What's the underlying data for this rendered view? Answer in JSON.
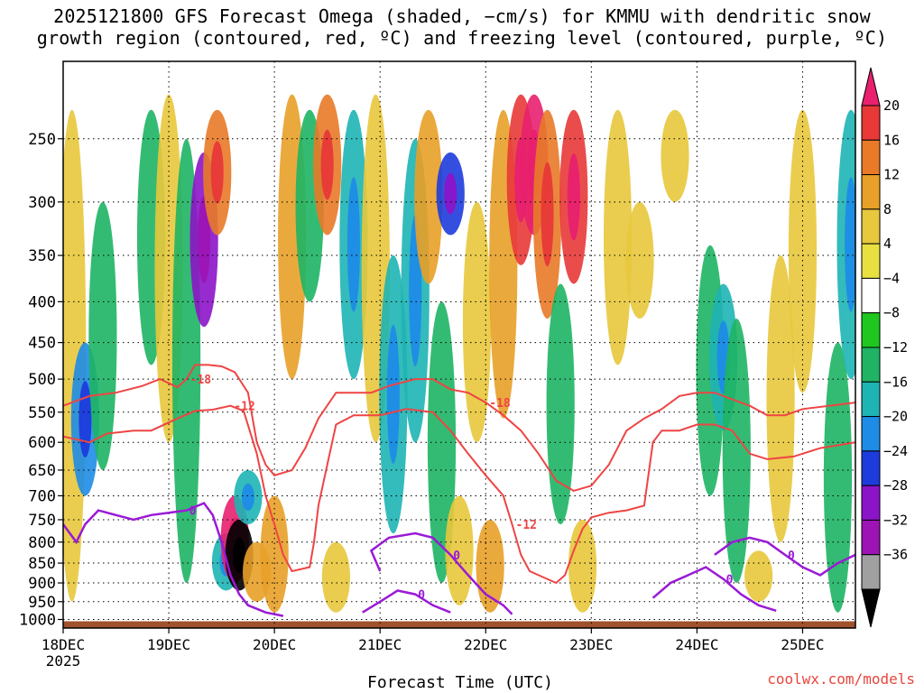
{
  "title_line1": "2025121800 GFS Forecast Omega (shaded, −cm/s) for KMMU with dendritic snow",
  "title_line2": "growth region (contoured, red, ºC) and freezing level (contoured, purple, ºC)",
  "credit": "coolwx.com/models",
  "chart_data": {
    "type": "heatmap",
    "title": "2025121800 GFS Forecast Omega (shaded, −cm/s) for KMMU with dendritic snow growth region (contoured, red, ºC) and freezing level (contoured, purple, ºC)",
    "xlabel": "Forecast Time (UTC)",
    "ylabel": "",
    "x_ticks": [
      {
        "label": "18DEC",
        "sub": "2025",
        "hours": 0
      },
      {
        "label": "19DEC",
        "sub": "",
        "hours": 24
      },
      {
        "label": "20DEC",
        "sub": "",
        "hours": 48
      },
      {
        "label": "21DEC",
        "sub": "",
        "hours": 72
      },
      {
        "label": "22DEC",
        "sub": "",
        "hours": 96
      },
      {
        "label": "23DEC",
        "sub": "",
        "hours": 120
      },
      {
        "label": "24DEC",
        "sub": "",
        "hours": 144
      },
      {
        "label": "25DEC",
        "sub": "",
        "hours": 168
      }
    ],
    "xlim_hours": [
      0,
      180
    ],
    "y_ticks": [
      250,
      300,
      350,
      400,
      450,
      500,
      550,
      600,
      650,
      700,
      750,
      800,
      850,
      900,
      950,
      1000
    ],
    "ylim_hPa": [
      1025,
      200
    ],
    "y_scale": "log-pressure",
    "grid": true,
    "colorbar": {
      "labels": [
        "20",
        "16",
        "12",
        "8",
        "4",
        "−4",
        "−8",
        "−12",
        "−16",
        "−20",
        "−24",
        "−28",
        "−32",
        "−36"
      ],
      "colors": [
        "#e8206e",
        "#e83838",
        "#e87a28",
        "#e8a028",
        "#e8c83c",
        "#e8e040",
        "#ffffff",
        "#1ec81e",
        "#1eb464",
        "#1eb4b4",
        "#1e8ce6",
        "#1e3cdc",
        "#8c14c8",
        "#9c14b4",
        "#a0a0a0",
        "#000000"
      ]
    },
    "omega_features": [
      {
        "t": 2,
        "p0": 230,
        "p1": 950,
        "v": 5
      },
      {
        "t": 5,
        "p0": 450,
        "p1": 700,
        "v": -16
      },
      {
        "t": 9,
        "p0": 300,
        "p1": 650,
        "v": -8
      },
      {
        "t": 20,
        "p0": 230,
        "p1": 480,
        "v": -8
      },
      {
        "t": 24,
        "p0": 220,
        "p1": 600,
        "v": 6
      },
      {
        "t": 28,
        "p0": 250,
        "p1": 900,
        "v": -10
      },
      {
        "t": 32,
        "p0": 260,
        "p1": 430,
        "v": -24
      },
      {
        "t": 35,
        "p0": 230,
        "p1": 330,
        "v": 14
      },
      {
        "t": 37,
        "p0": 780,
        "p1": 920,
        "v": -14
      },
      {
        "t": 39,
        "p0": 700,
        "p1": 900,
        "v": 20
      },
      {
        "t": 40,
        "p0": 750,
        "p1": 920,
        "v": -36
      },
      {
        "t": 42,
        "p0": 650,
        "p1": 760,
        "v": -14
      },
      {
        "t": 44,
        "p0": 800,
        "p1": 950,
        "v": 10
      },
      {
        "t": 48,
        "p0": 700,
        "p1": 980,
        "v": 8
      },
      {
        "t": 52,
        "p0": 220,
        "p1": 500,
        "v": 8
      },
      {
        "t": 56,
        "p0": 230,
        "p1": 400,
        "v": -10
      },
      {
        "t": 60,
        "p0": 220,
        "p1": 330,
        "v": 12
      },
      {
        "t": 62,
        "p0": 800,
        "p1": 980,
        "v": 6
      },
      {
        "t": 66,
        "p0": 230,
        "p1": 500,
        "v": -12
      },
      {
        "t": 71,
        "p0": 220,
        "p1": 600,
        "v": 6
      },
      {
        "t": 75,
        "p0": 350,
        "p1": 780,
        "v": -12
      },
      {
        "t": 80,
        "p0": 250,
        "p1": 600,
        "v": -14
      },
      {
        "t": 83,
        "p0": 230,
        "p1": 380,
        "v": 10
      },
      {
        "t": 86,
        "p0": 400,
        "p1": 900,
        "v": -10
      },
      {
        "t": 88,
        "p0": 260,
        "p1": 330,
        "v": -22
      },
      {
        "t": 90,
        "p0": 700,
        "p1": 960,
        "v": 6
      },
      {
        "t": 94,
        "p0": 300,
        "p1": 600,
        "v": 6
      },
      {
        "t": 97,
        "p0": 750,
        "p1": 980,
        "v": 8
      },
      {
        "t": 100,
        "p0": 230,
        "p1": 560,
        "v": 10
      },
      {
        "t": 104,
        "p0": 220,
        "p1": 360,
        "v": 16
      },
      {
        "t": 107,
        "p0": 220,
        "p1": 330,
        "v": 22
      },
      {
        "t": 110,
        "p0": 230,
        "p1": 420,
        "v": 14
      },
      {
        "t": 113,
        "p0": 380,
        "p1": 760,
        "v": -10
      },
      {
        "t": 116,
        "p0": 230,
        "p1": 380,
        "v": 18
      },
      {
        "t": 118,
        "p0": 750,
        "p1": 980,
        "v": 6
      },
      {
        "t": 126,
        "p0": 230,
        "p1": 480,
        "v": 6
      },
      {
        "t": 131,
        "p0": 300,
        "p1": 420,
        "v": 6
      },
      {
        "t": 139,
        "p0": 230,
        "p1": 300,
        "v": 6
      },
      {
        "t": 147,
        "p0": 340,
        "p1": 700,
        "v": -8
      },
      {
        "t": 150,
        "p0": 380,
        "p1": 580,
        "v": -14
      },
      {
        "t": 153,
        "p0": 420,
        "p1": 900,
        "v": -8
      },
      {
        "t": 158,
        "p0": 820,
        "p1": 950,
        "v": 6
      },
      {
        "t": 163,
        "p0": 350,
        "p1": 800,
        "v": 6
      },
      {
        "t": 168,
        "p0": 230,
        "p1": 520,
        "v": 6
      },
      {
        "t": 176,
        "p0": 450,
        "p1": 980,
        "v": -10
      },
      {
        "t": 179,
        "p0": 230,
        "p1": 500,
        "v": -14
      }
    ],
    "dgz_contours": [
      {
        "label": "-18",
        "label_at": 6,
        "points": [
          [
            0,
            540
          ],
          [
            6,
            525
          ],
          [
            12,
            520
          ],
          [
            18,
            510
          ],
          [
            22,
            500
          ],
          [
            26,
            512
          ],
          [
            28,
            500
          ],
          [
            30,
            480
          ],
          [
            33,
            480
          ],
          [
            36,
            482
          ],
          [
            39,
            490
          ],
          [
            42,
            520
          ],
          [
            44,
            600
          ],
          [
            46,
            640
          ],
          [
            48,
            660
          ],
          [
            52,
            650
          ],
          [
            55,
            610
          ],
          [
            58,
            560
          ],
          [
            62,
            520
          ],
          [
            70,
            520
          ],
          [
            74,
            510
          ],
          [
            80,
            500
          ],
          [
            84,
            500
          ],
          [
            88,
            515
          ],
          [
            92,
            520
          ],
          [
            96,
            535
          ],
          [
            100,
            555
          ],
          [
            104,
            580
          ],
          [
            108,
            620
          ],
          [
            112,
            670
          ],
          [
            116,
            690
          ],
          [
            120,
            680
          ],
          [
            124,
            640
          ],
          [
            128,
            580
          ],
          [
            132,
            560
          ],
          [
            136,
            545
          ],
          [
            140,
            525
          ],
          [
            144,
            520
          ],
          [
            148,
            520
          ],
          [
            152,
            530
          ],
          [
            156,
            540
          ],
          [
            160,
            555
          ],
          [
            164,
            555
          ],
          [
            168,
            545
          ],
          [
            174,
            540
          ],
          [
            180,
            535
          ]
        ]
      },
      {
        "label": "-12",
        "label_at": 8,
        "points": [
          [
            0,
            590
          ],
          [
            6,
            600
          ],
          [
            10,
            585
          ],
          [
            16,
            580
          ],
          [
            20,
            580
          ],
          [
            26,
            560
          ],
          [
            30,
            548
          ],
          [
            34,
            546
          ],
          [
            38,
            540
          ],
          [
            41,
            548
          ],
          [
            44,
            620
          ],
          [
            46,
            700
          ],
          [
            48,
            760
          ],
          [
            50,
            830
          ],
          [
            52,
            870
          ],
          [
            56,
            860
          ],
          [
            57,
            800
          ],
          [
            58,
            720
          ],
          [
            60,
            640
          ],
          [
            62,
            570
          ],
          [
            66,
            555
          ],
          [
            72,
            555
          ],
          [
            78,
            545
          ],
          [
            84,
            550
          ],
          [
            88,
            580
          ],
          [
            92,
            620
          ],
          [
            96,
            660
          ],
          [
            100,
            700
          ],
          [
            102,
            760
          ],
          [
            104,
            830
          ],
          [
            106,
            870
          ],
          [
            108,
            880
          ],
          [
            112,
            900
          ],
          [
            114,
            880
          ],
          [
            116,
            820
          ],
          [
            118,
            770
          ],
          [
            120,
            745
          ],
          [
            124,
            735
          ],
          [
            128,
            730
          ],
          [
            132,
            720
          ],
          [
            134,
            600
          ],
          [
            136,
            580
          ],
          [
            140,
            580
          ],
          [
            144,
            570
          ],
          [
            148,
            570
          ],
          [
            152,
            580
          ],
          [
            156,
            620
          ],
          [
            160,
            630
          ],
          [
            166,
            625
          ],
          [
            172,
            610
          ],
          [
            180,
            600
          ]
        ]
      }
    ],
    "freezing_contours": [
      {
        "label": "0",
        "points": [
          [
            0,
            760
          ],
          [
            3,
            800
          ],
          [
            5,
            760
          ],
          [
            8,
            730
          ],
          [
            12,
            740
          ],
          [
            16,
            750
          ],
          [
            20,
            740
          ],
          [
            24,
            735
          ],
          [
            28,
            730
          ],
          [
            32,
            715
          ],
          [
            34,
            740
          ],
          [
            36,
            800
          ],
          [
            38,
            880
          ],
          [
            40,
            930
          ],
          [
            42,
            960
          ],
          [
            46,
            980
          ],
          [
            50,
            990
          ]
        ]
      },
      {
        "label": "0",
        "points": [
          [
            68,
            980
          ],
          [
            72,
            950
          ],
          [
            76,
            920
          ],
          [
            80,
            930
          ],
          [
            84,
            960
          ],
          [
            88,
            980
          ]
        ]
      },
      {
        "label": "0",
        "points": [
          [
            72,
            870
          ],
          [
            70,
            820
          ],
          [
            74,
            790
          ],
          [
            80,
            780
          ],
          [
            84,
            790
          ],
          [
            88,
            830
          ],
          [
            92,
            880
          ],
          [
            96,
            930
          ],
          [
            100,
            960
          ],
          [
            102,
            985
          ]
        ]
      },
      {
        "label": "0",
        "points": [
          [
            134,
            940
          ],
          [
            138,
            900
          ],
          [
            142,
            880
          ],
          [
            146,
            860
          ],
          [
            150,
            890
          ],
          [
            154,
            930
          ],
          [
            158,
            960
          ],
          [
            162,
            975
          ]
        ]
      },
      {
        "label": "0",
        "points": [
          [
            148,
            830
          ],
          [
            152,
            800
          ],
          [
            156,
            790
          ],
          [
            160,
            800
          ],
          [
            164,
            830
          ],
          [
            168,
            860
          ],
          [
            172,
            880
          ],
          [
            176,
            850
          ],
          [
            180,
            830
          ]
        ]
      }
    ]
  }
}
